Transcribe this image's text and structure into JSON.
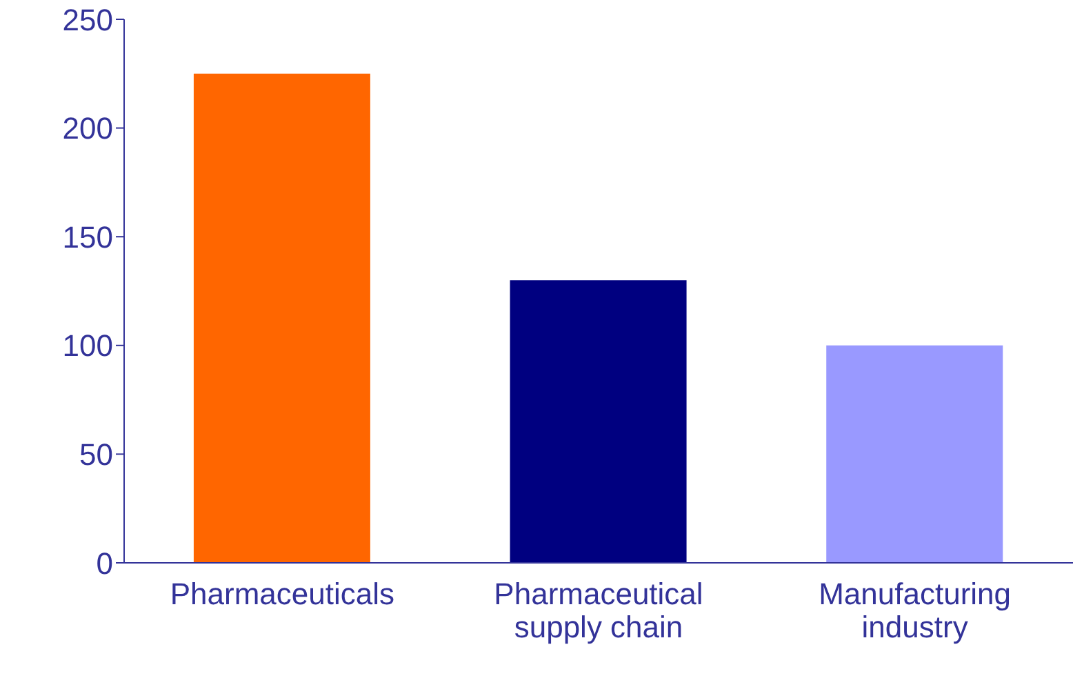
{
  "chart_data": {
    "type": "bar",
    "categories": [
      "Pharmaceuticals",
      "Pharmaceutical supply chain",
      "Manufacturing industry"
    ],
    "values": [
      225,
      130,
      100
    ],
    "colors": [
      "#ff6600",
      "#000080",
      "#9999ff"
    ],
    "ylim": [
      0,
      250
    ],
    "yticks": [
      0,
      50,
      100,
      150,
      200,
      250
    ],
    "grid": false,
    "legend": false
  }
}
